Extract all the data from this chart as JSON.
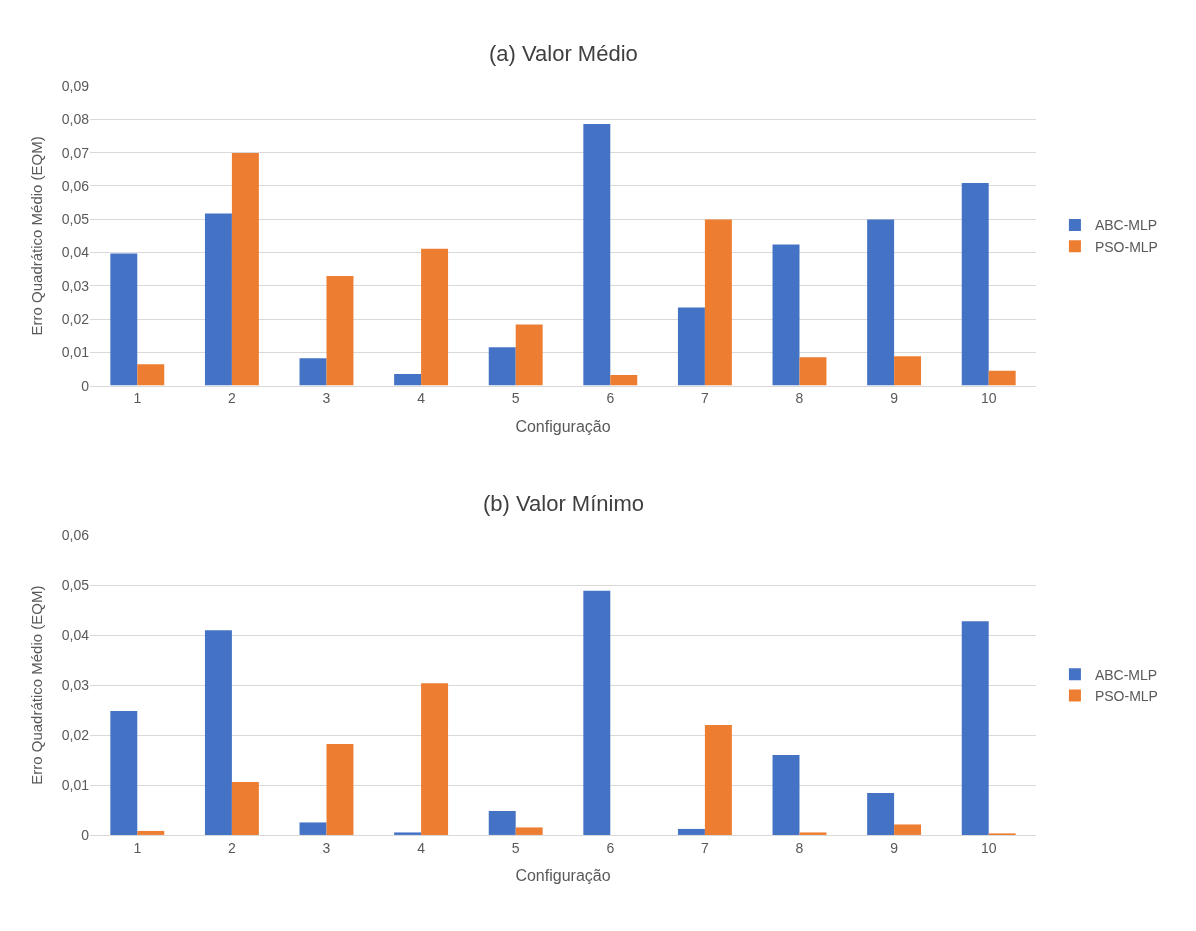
{
  "chart_data": [
    {
      "type": "bar",
      "title": "(a) Valor Médio",
      "xlabel": "Configuração",
      "ylabel": "Erro Quadrático Médio (EQM)",
      "categories": [
        "1",
        "2",
        "3",
        "4",
        "5",
        "6",
        "7",
        "8",
        "9",
        "10"
      ],
      "series": [
        {
          "name": "ABC-MLP",
          "color": "#4472c4",
          "values": [
            0.0397,
            0.0517,
            0.0082,
            0.0035,
            0.0115,
            0.0786,
            0.0235,
            0.0424,
            0.0499,
            0.0609
          ]
        },
        {
          "name": "PSO-MLP",
          "color": "#ed7d31",
          "values": [
            0.0064,
            0.0699,
            0.0329,
            0.0411,
            0.0184,
            0.0032,
            0.0499,
            0.0085,
            0.0088,
            0.0045
          ]
        }
      ],
      "ylim": [
        0,
        0.09
      ],
      "yticks": [
        0,
        {
          "value": 0.01,
          "label": "0,01"
        },
        {
          "value": 0.02,
          "label": "0,02"
        },
        {
          "value": 0.03,
          "label": "0,03"
        },
        {
          "value": 0.04,
          "label": "0,04"
        },
        {
          "value": 0.05,
          "label": "0,05"
        },
        {
          "value": 0.06,
          "label": "0,06"
        },
        {
          "value": 0.07,
          "label": "0,07"
        },
        {
          "value": 0.08,
          "label": "0,08"
        },
        {
          "value": 0.09,
          "label": "0,09"
        }
      ],
      "grid": "y",
      "legend": "right"
    },
    {
      "type": "bar",
      "title": "(b) Valor Mínimo",
      "xlabel": "Configuração",
      "ylabel": "Erro Quadrático Médio (EQM)",
      "categories": [
        "1",
        "2",
        "3",
        "4",
        "5",
        "6",
        "7",
        "8",
        "9",
        "10"
      ],
      "series": [
        {
          "name": "ABC-MLP",
          "color": "#4472c4",
          "values": [
            0.0248,
            0.041,
            0.0025,
            0.0005,
            0.0048,
            0.0489,
            0.0012,
            0.016,
            0.0084,
            0.0428
          ]
        },
        {
          "name": "PSO-MLP",
          "color": "#ed7d31",
          "values": [
            0.0008,
            0.0106,
            0.0182,
            0.0304,
            0.0015,
            0,
            0.022,
            0.0005,
            0.0021,
            0.0003
          ]
        }
      ],
      "ylim": [
        0,
        0.06
      ],
      "yticks": [
        0,
        {
          "value": 0.01,
          "label": "0,01"
        },
        {
          "value": 0.02,
          "label": "0,02"
        },
        {
          "value": 0.03,
          "label": "0,03"
        },
        {
          "value": 0.04,
          "label": "0,04"
        },
        {
          "value": 0.05,
          "label": "0,05"
        },
        {
          "value": 0.06,
          "label": "0,06"
        }
      ],
      "grid": "y",
      "legend": "right"
    }
  ]
}
